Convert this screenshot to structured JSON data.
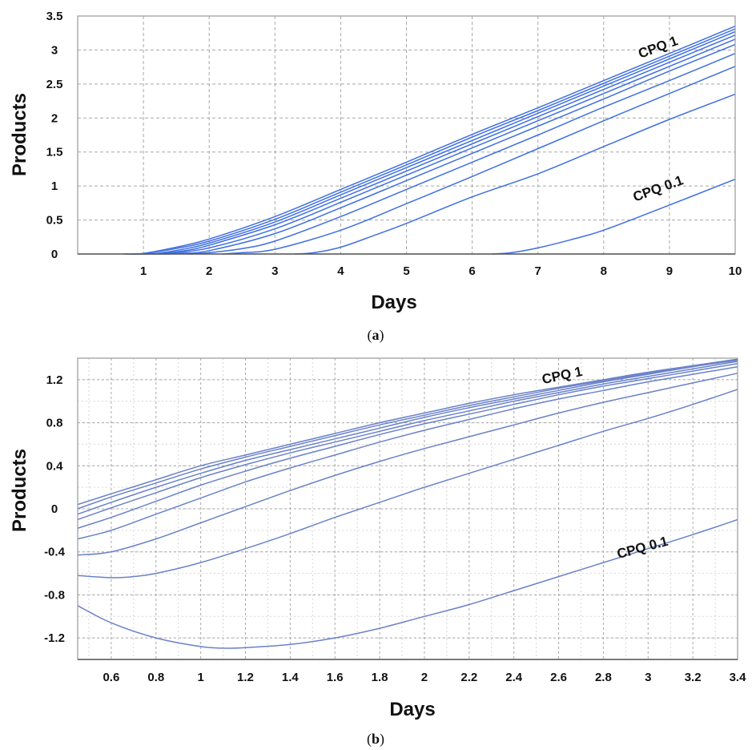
{
  "chart_data": [
    {
      "type": "line",
      "caption_letter": "a",
      "xlabel": "Days",
      "ylabel": "Products",
      "xlim": [
        0,
        10
      ],
      "ylim": [
        0,
        3.5
      ],
      "xticks": [
        1,
        2,
        3,
        4,
        5,
        6,
        7,
        8,
        9,
        10
      ],
      "yticks": [
        0,
        0.5,
        1,
        1.5,
        2,
        2.5,
        3,
        3.5
      ],
      "grid": true,
      "line_color": "#3f6fe0",
      "annotations": [
        {
          "text": "CPQ 1",
          "x": 8.85,
          "y": 2.98,
          "angle": -20
        },
        {
          "text": "CPQ 0.1",
          "x": 8.85,
          "y": 0.9,
          "angle": -20
        }
      ],
      "series": [
        {
          "values": [
            [
              0.7,
              0
            ],
            [
              1,
              0.01
            ],
            [
              1.5,
              0.1
            ],
            [
              2,
              0.22
            ],
            [
              3,
              0.55
            ],
            [
              4,
              0.95
            ],
            [
              5,
              1.35
            ],
            [
              6,
              1.76
            ],
            [
              7,
              2.15
            ],
            [
              8,
              2.55
            ],
            [
              9,
              2.95
            ],
            [
              10,
              3.35
            ]
          ]
        },
        {
          "values": [
            [
              0.8,
              0
            ],
            [
              1,
              0.005
            ],
            [
              1.5,
              0.08
            ],
            [
              2,
              0.19
            ],
            [
              3,
              0.51
            ],
            [
              4,
              0.91
            ],
            [
              5,
              1.31
            ],
            [
              6,
              1.72
            ],
            [
              7,
              2.11
            ],
            [
              8,
              2.51
            ],
            [
              9,
              2.91
            ],
            [
              10,
              3.31
            ]
          ]
        },
        {
          "values": [
            [
              0.9,
              0
            ],
            [
              1.2,
              0.01
            ],
            [
              1.6,
              0.07
            ],
            [
              2,
              0.16
            ],
            [
              3,
              0.47
            ],
            [
              4,
              0.87
            ],
            [
              5,
              1.27
            ],
            [
              6,
              1.67
            ],
            [
              7,
              2.07
            ],
            [
              8,
              2.47
            ],
            [
              9,
              2.87
            ],
            [
              10,
              3.27
            ]
          ]
        },
        {
          "values": [
            [
              1,
              0
            ],
            [
              1.3,
              0.01
            ],
            [
              1.7,
              0.06
            ],
            [
              2,
              0.13
            ],
            [
              3,
              0.43
            ],
            [
              4,
              0.82
            ],
            [
              5,
              1.22
            ],
            [
              6,
              1.62
            ],
            [
              7,
              2.02
            ],
            [
              8,
              2.42
            ],
            [
              9,
              2.82
            ],
            [
              10,
              3.22
            ]
          ]
        },
        {
          "values": [
            [
              1.1,
              0
            ],
            [
              1.4,
              0.01
            ],
            [
              2,
              0.09
            ],
            [
              3,
              0.37
            ],
            [
              4,
              0.76
            ],
            [
              5,
              1.16
            ],
            [
              6,
              1.56
            ],
            [
              7,
              1.96
            ],
            [
              8,
              2.36
            ],
            [
              9,
              2.76
            ],
            [
              10,
              3.16
            ]
          ]
        },
        {
          "values": [
            [
              1.3,
              0
            ],
            [
              1.6,
              0.01
            ],
            [
              2,
              0.05
            ],
            [
              3,
              0.3
            ],
            [
              4,
              0.68
            ],
            [
              5,
              1.08
            ],
            [
              6,
              1.48
            ],
            [
              7,
              1.88
            ],
            [
              8,
              2.28
            ],
            [
              9,
              2.69
            ],
            [
              10,
              3.08
            ]
          ]
        },
        {
          "values": [
            [
              1.7,
              0
            ],
            [
              2,
              0.02
            ],
            [
              2.5,
              0.08
            ],
            [
              3,
              0.19
            ],
            [
              4,
              0.55
            ],
            [
              5,
              0.95
            ],
            [
              6,
              1.35
            ],
            [
              7,
              1.75
            ],
            [
              8,
              2.16
            ],
            [
              9,
              2.55
            ],
            [
              10,
              2.95
            ]
          ]
        },
        {
          "values": [
            [
              2.2,
              0
            ],
            [
              2.5,
              0.02
            ],
            [
              3,
              0.07
            ],
            [
              4,
              0.35
            ],
            [
              5,
              0.74
            ],
            [
              6,
              1.14
            ],
            [
              7,
              1.55
            ],
            [
              8,
              1.96
            ],
            [
              9,
              2.36
            ],
            [
              10,
              2.76
            ]
          ]
        },
        {
          "values": [
            [
              3.3,
              0
            ],
            [
              3.6,
              0.02
            ],
            [
              4,
              0.1
            ],
            [
              4.5,
              0.27
            ],
            [
              5,
              0.45
            ],
            [
              6,
              0.84
            ],
            [
              7,
              1.18
            ],
            [
              8,
              1.58
            ],
            [
              9,
              1.98
            ],
            [
              10,
              2.35
            ]
          ]
        },
        {
          "values": [
            [
              6.3,
              0
            ],
            [
              6.6,
              0.02
            ],
            [
              7,
              0.09
            ],
            [
              7.5,
              0.21
            ],
            [
              8,
              0.35
            ],
            [
              9,
              0.72
            ],
            [
              10,
              1.1
            ]
          ]
        }
      ]
    },
    {
      "type": "line",
      "caption_letter": "b",
      "xlabel": "Days",
      "ylabel": "Products",
      "xlim": [
        0.45,
        3.4
      ],
      "ylim": [
        -1.4,
        1.4
      ],
      "xticks": [
        0.6,
        0.8,
        1,
        1.2,
        1.4,
        1.6,
        1.8,
        2,
        2.2,
        2.4,
        2.6,
        2.8,
        3,
        3.2,
        3.4
      ],
      "yticks": [
        -1.2,
        -0.8,
        -0.4,
        0,
        0.4,
        0.8,
        1.2
      ],
      "grid": true,
      "line_color": "#6a82c8",
      "annotations": [
        {
          "text": "CPQ 1",
          "x": 2.62,
          "y": 1.2,
          "angle": -12
        },
        {
          "text": "CPQ 0.1",
          "x": 2.98,
          "y": -0.4,
          "angle": -15
        }
      ],
      "series": [
        {
          "values": [
            [
              0.45,
              0.04
            ],
            [
              0.6,
              0.14
            ],
            [
              0.8,
              0.27
            ],
            [
              1,
              0.4
            ],
            [
              1.2,
              0.5
            ],
            [
              1.4,
              0.6
            ],
            [
              1.6,
              0.7
            ],
            [
              1.8,
              0.8
            ],
            [
              2,
              0.89
            ],
            [
              2.2,
              0.98
            ],
            [
              2.4,
              1.06
            ],
            [
              2.6,
              1.13
            ],
            [
              2.8,
              1.2
            ],
            [
              3,
              1.27
            ],
            [
              3.2,
              1.33
            ],
            [
              3.4,
              1.39
            ]
          ]
        },
        {
          "values": [
            [
              0.45,
              0.0
            ],
            [
              0.6,
              0.11
            ],
            [
              0.8,
              0.24
            ],
            [
              1,
              0.37
            ],
            [
              1.2,
              0.48
            ],
            [
              1.4,
              0.58
            ],
            [
              1.6,
              0.68
            ],
            [
              1.8,
              0.78
            ],
            [
              2,
              0.87
            ],
            [
              2.2,
              0.96
            ],
            [
              2.4,
              1.04
            ],
            [
              2.6,
              1.12
            ],
            [
              2.8,
              1.19
            ],
            [
              3,
              1.26
            ],
            [
              3.2,
              1.33
            ],
            [
              3.4,
              1.39
            ]
          ]
        },
        {
          "values": [
            [
              0.45,
              -0.05
            ],
            [
              0.6,
              0.06
            ],
            [
              0.8,
              0.2
            ],
            [
              1,
              0.33
            ],
            [
              1.2,
              0.45
            ],
            [
              1.4,
              0.55
            ],
            [
              1.6,
              0.65
            ],
            [
              1.8,
              0.75
            ],
            [
              2,
              0.85
            ],
            [
              2.2,
              0.94
            ],
            [
              2.4,
              1.02
            ],
            [
              2.6,
              1.1
            ],
            [
              2.8,
              1.18
            ],
            [
              3,
              1.25
            ],
            [
              3.2,
              1.32
            ],
            [
              3.4,
              1.38
            ]
          ]
        },
        {
          "values": [
            [
              0.45,
              -0.1
            ],
            [
              0.6,
              0.01
            ],
            [
              0.8,
              0.15
            ],
            [
              1,
              0.29
            ],
            [
              1.2,
              0.41
            ],
            [
              1.4,
              0.52
            ],
            [
              1.6,
              0.62
            ],
            [
              1.8,
              0.72
            ],
            [
              2,
              0.82
            ],
            [
              2.2,
              0.91
            ],
            [
              2.4,
              1.0
            ],
            [
              2.6,
              1.08
            ],
            [
              2.8,
              1.16
            ],
            [
              3,
              1.23
            ],
            [
              3.2,
              1.3
            ],
            [
              3.4,
              1.37
            ]
          ]
        },
        {
          "values": [
            [
              0.45,
              -0.18
            ],
            [
              0.6,
              -0.08
            ],
            [
              0.8,
              0.07
            ],
            [
              1,
              0.22
            ],
            [
              1.2,
              0.35
            ],
            [
              1.4,
              0.47
            ],
            [
              1.6,
              0.58
            ],
            [
              1.8,
              0.69
            ],
            [
              2,
              0.79
            ],
            [
              2.2,
              0.88
            ],
            [
              2.4,
              0.97
            ],
            [
              2.6,
              1.06
            ],
            [
              2.8,
              1.14
            ],
            [
              3,
              1.21
            ],
            [
              3.2,
              1.28
            ],
            [
              3.4,
              1.35
            ]
          ]
        },
        {
          "values": [
            [
              0.45,
              -0.28
            ],
            [
              0.6,
              -0.2
            ],
            [
              0.8,
              -0.05
            ],
            [
              1,
              0.1
            ],
            [
              1.2,
              0.25
            ],
            [
              1.4,
              0.38
            ],
            [
              1.6,
              0.5
            ],
            [
              1.8,
              0.62
            ],
            [
              2,
              0.73
            ],
            [
              2.2,
              0.83
            ],
            [
              2.4,
              0.93
            ],
            [
              2.6,
              1.02
            ],
            [
              2.8,
              1.1
            ],
            [
              3,
              1.18
            ],
            [
              3.2,
              1.25
            ],
            [
              3.4,
              1.32
            ]
          ]
        },
        {
          "values": [
            [
              0.45,
              -0.43
            ],
            [
              0.6,
              -0.4
            ],
            [
              0.8,
              -0.28
            ],
            [
              1,
              -0.13
            ],
            [
              1.2,
              0.02
            ],
            [
              1.4,
              0.17
            ],
            [
              1.6,
              0.31
            ],
            [
              1.8,
              0.44
            ],
            [
              2,
              0.56
            ],
            [
              2.2,
              0.67
            ],
            [
              2.4,
              0.78
            ],
            [
              2.6,
              0.89
            ],
            [
              2.8,
              0.99
            ],
            [
              3,
              1.08
            ],
            [
              3.2,
              1.17
            ],
            [
              3.4,
              1.26
            ]
          ]
        },
        {
          "values": [
            [
              0.45,
              -0.62
            ],
            [
              0.6,
              -0.64
            ],
            [
              0.7,
              -0.63
            ],
            [
              0.8,
              -0.6
            ],
            [
              1,
              -0.5
            ],
            [
              1.2,
              -0.37
            ],
            [
              1.4,
              -0.23
            ],
            [
              1.6,
              -0.08
            ],
            [
              1.8,
              0.06
            ],
            [
              2,
              0.2
            ],
            [
              2.2,
              0.33
            ],
            [
              2.4,
              0.46
            ],
            [
              2.6,
              0.59
            ],
            [
              2.8,
              0.72
            ],
            [
              3,
              0.84
            ],
            [
              3.2,
              0.97
            ],
            [
              3.4,
              1.11
            ]
          ]
        },
        {
          "values": [
            [
              0.45,
              -0.9
            ],
            [
              0.6,
              -1.06
            ],
            [
              0.8,
              -1.2
            ],
            [
              1,
              -1.28
            ],
            [
              1.1,
              -1.295
            ],
            [
              1.2,
              -1.29
            ],
            [
              1.4,
              -1.26
            ],
            [
              1.6,
              -1.2
            ],
            [
              1.8,
              -1.11
            ],
            [
              2,
              -1.0
            ],
            [
              2.2,
              -0.89
            ],
            [
              2.4,
              -0.76
            ],
            [
              2.6,
              -0.63
            ],
            [
              2.8,
              -0.5
            ],
            [
              3,
              -0.37
            ],
            [
              3.2,
              -0.24
            ],
            [
              3.4,
              -0.1
            ]
          ]
        }
      ]
    }
  ]
}
